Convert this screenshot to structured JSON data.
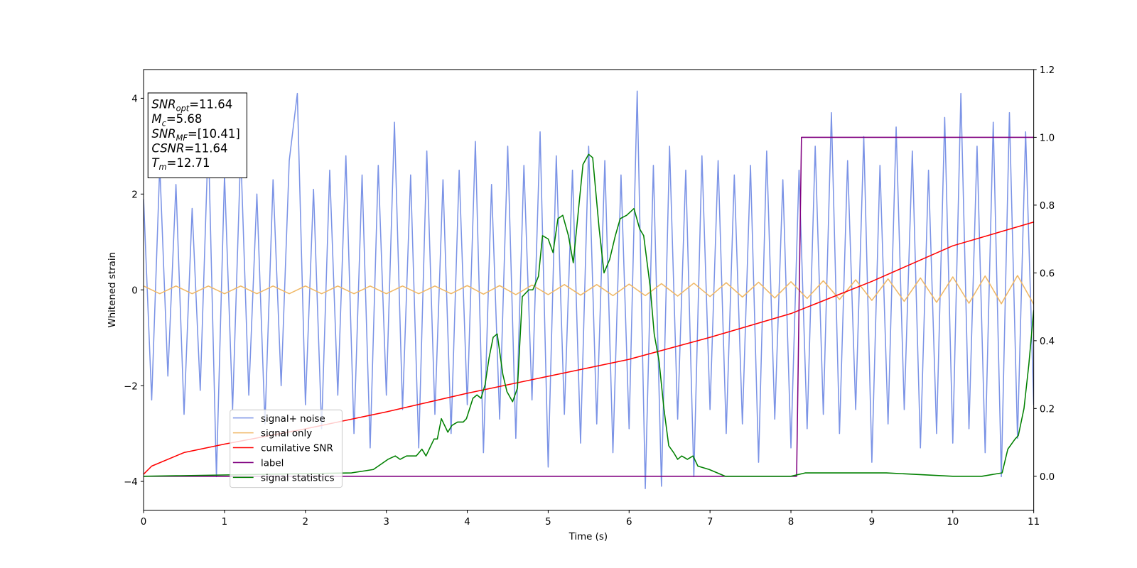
{
  "chart_data": {
    "type": "line",
    "xlabel": "Time (s)",
    "ylabel": "Whitened strain",
    "xlim": [
      0,
      11
    ],
    "xticks": [
      0,
      1,
      2,
      3,
      4,
      5,
      6,
      7,
      8,
      9,
      10,
      11
    ],
    "ylim": [
      -4.6,
      4.6
    ],
    "yticks": [
      {
        "value": -4,
        "label": "−4"
      },
      {
        "value": -2,
        "label": "−2"
      },
      0,
      2,
      4
    ],
    "y2lim": [
      -0.1,
      1.2
    ],
    "y2ticks": [
      {
        "value": 0,
        "label": "0.0"
      },
      {
        "value": 0.2,
        "label": "0.2"
      },
      {
        "value": 0.4,
        "label": "0.4"
      },
      {
        "value": 0.6,
        "label": "0.6"
      },
      {
        "value": 0.8,
        "label": "0.8"
      },
      {
        "value": 1,
        "label": "1.0"
      },
      {
        "value": 1.2,
        "label": "1.2"
      }
    ],
    "legend": "lower left",
    "annotations": [
      {
        "symbol": "SNR",
        "subscript": "opt",
        "text": "=11.64"
      },
      {
        "symbol": "M",
        "subscript": "c",
        "text": "=5.68"
      },
      {
        "symbol": "SNR",
        "subscript": "MF",
        "text": "=[10.41]"
      },
      {
        "symbol": "CSNR",
        "text": "=11.64"
      },
      {
        "symbol": "T",
        "subscript": "m",
        "text": "=12.71"
      }
    ],
    "series": [
      {
        "name": "signal+ noise",
        "color": "#7b93e6",
        "x": [
          0,
          0.1,
          0.2,
          0.3,
          0.4,
          0.5,
          0.6,
          0.7,
          0.8,
          0.9,
          1,
          1.1,
          1.2,
          1.3,
          1.4,
          1.5,
          1.6,
          1.7,
          1.8,
          1.9,
          2,
          2.1,
          2.2,
          2.3,
          2.4,
          2.5,
          2.6,
          2.7,
          2.8,
          2.9,
          3,
          3.1,
          3.2,
          3.3,
          3.4,
          3.5,
          3.6,
          3.7,
          3.8,
          3.9,
          4,
          4.1,
          4.2,
          4.3,
          4.4,
          4.5,
          4.6,
          4.7,
          4.8,
          4.9,
          5,
          5.1,
          5.2,
          5.3,
          5.4,
          5.5,
          5.6,
          5.7,
          5.8,
          5.9,
          6,
          6.1,
          6.2,
          6.3,
          6.4,
          6.5,
          6.6,
          6.7,
          6.8,
          6.9,
          7,
          7.1,
          7.2,
          7.3,
          7.4,
          7.5,
          7.6,
          7.7,
          7.8,
          7.9,
          8,
          8.1,
          8.2,
          8.3,
          8.4,
          8.5,
          8.6,
          8.7,
          8.8,
          8.9,
          9,
          9.1,
          9.2,
          9.3,
          9.4,
          9.5,
          9.6,
          9.7,
          9.8,
          9.9,
          10,
          10.1,
          10.2,
          10.3,
          10.4,
          10.5,
          10.6,
          10.7,
          10.8,
          10.9,
          11
        ],
        "values": [
          1.9,
          -2.3,
          2.6,
          -1.8,
          2.2,
          -2.6,
          1.7,
          -2.1,
          3.2,
          -3.9,
          2.4,
          -2.5,
          2.9,
          -2.2,
          2.0,
          -2.8,
          2.3,
          -2.0,
          2.7,
          4.1,
          -2.4,
          2.1,
          -2.9,
          2.5,
          -2.2,
          2.8,
          -3.0,
          2.4,
          -3.3,
          2.6,
          -2.2,
          3.5,
          -2.5,
          2.4,
          -3.3,
          2.9,
          -2.6,
          2.3,
          -3.0,
          2.5,
          -2.4,
          3.1,
          -3.4,
          2.2,
          -2.7,
          3.0,
          -3.1,
          2.6,
          -2.3,
          3.3,
          -3.7,
          2.8,
          -2.6,
          2.5,
          -3.2,
          3.0,
          -2.8,
          2.7,
          -3.4,
          2.4,
          -2.9,
          4.15,
          -4.15,
          2.6,
          -4.1,
          3.0,
          -2.7,
          2.5,
          -3.9,
          2.8,
          -2.5,
          2.7,
          -3.0,
          2.4,
          -2.8,
          2.6,
          -3.6,
          2.9,
          -2.7,
          2.3,
          -3.3,
          2.5,
          -2.9,
          3.0,
          -2.6,
          3.7,
          -3.0,
          2.7,
          -2.5,
          3.2,
          -3.6,
          2.6,
          -2.8,
          3.4,
          -2.5,
          2.9,
          -3.3,
          2.5,
          -3.0,
          3.6,
          -3.2,
          4.1,
          -2.9,
          3.0,
          -3.4,
          3.5,
          -3.9,
          3.7,
          -3.1,
          3.3,
          -2.4
        ]
      },
      {
        "name": "signal only",
        "color": "#f0b866",
        "x": [
          0,
          0.2,
          0.4,
          0.6,
          0.8,
          1,
          1.2,
          1.4,
          1.6,
          1.8,
          2,
          2.2,
          2.4,
          2.6,
          2.8,
          3,
          3.2,
          3.4,
          3.6,
          3.8,
          4,
          4.2,
          4.4,
          4.6,
          4.8,
          5,
          5.2,
          5.4,
          5.6,
          5.8,
          6,
          6.2,
          6.4,
          6.6,
          6.8,
          7,
          7.2,
          7.4,
          7.6,
          7.8,
          8,
          8.2,
          8.4,
          8.6,
          8.8,
          9,
          9.2,
          9.4,
          9.6,
          9.8,
          10,
          10.2,
          10.4,
          10.6,
          10.8,
          11
        ],
        "values": [
          0.08,
          -0.08,
          0.08,
          -0.08,
          0.08,
          -0.08,
          0.08,
          -0.08,
          0.08,
          -0.08,
          0.08,
          -0.08,
          0.08,
          -0.08,
          0.08,
          -0.08,
          0.08,
          -0.08,
          0.08,
          -0.08,
          0.09,
          -0.09,
          0.09,
          -0.1,
          0.1,
          -0.1,
          0.11,
          -0.11,
          0.11,
          -0.12,
          0.12,
          -0.12,
          0.13,
          -0.13,
          0.14,
          -0.14,
          0.15,
          -0.15,
          0.16,
          -0.17,
          0.17,
          -0.18,
          0.19,
          -0.2,
          0.21,
          -0.22,
          0.23,
          -0.24,
          0.25,
          -0.26,
          0.27,
          -0.28,
          0.29,
          -0.29,
          0.3,
          -0.3
        ]
      },
      {
        "name": "cumilative SNR",
        "color": "#ff0000",
        "axis": "y2",
        "x": [
          0,
          0.1,
          0.5,
          1,
          2,
          3,
          4,
          5,
          6,
          7,
          8,
          9,
          10,
          11
        ],
        "values": [
          0.006,
          0.03,
          0.07,
          0.095,
          0.14,
          0.19,
          0.245,
          0.295,
          0.345,
          0.41,
          0.48,
          0.575,
          0.68,
          0.75
        ]
      },
      {
        "name": "label",
        "color": "#800080",
        "axis": "y2",
        "x": [
          0,
          8.07,
          8.13,
          11
        ],
        "values": [
          0,
          0,
          1,
          1
        ]
      },
      {
        "name": "signal statistics",
        "color": "#008000",
        "axis": "y2",
        "x": [
          0,
          2.57,
          2.84,
          3.02,
          3.11,
          3.17,
          3.25,
          3.37,
          3.44,
          3.49,
          3.59,
          3.63,
          3.68,
          3.76,
          3.81,
          3.88,
          3.95,
          3.99,
          4.07,
          4.12,
          4.17,
          4.22,
          4.27,
          4.32,
          4.37,
          4.44,
          4.49,
          4.56,
          4.62,
          4.68,
          4.76,
          4.81,
          4.88,
          4.93,
          5.0,
          5.06,
          5.12,
          5.18,
          5.25,
          5.31,
          5.38,
          5.43,
          5.5,
          5.55,
          5.63,
          5.69,
          5.76,
          5.83,
          5.89,
          5.97,
          6.06,
          6.13,
          6.18,
          6.26,
          6.31,
          6.37,
          6.43,
          6.49,
          6.55,
          6.6,
          6.65,
          6.72,
          6.79,
          6.85,
          6.99,
          7.19,
          8.0,
          8.18,
          8.28,
          8.55,
          9.18,
          10.0,
          10.36,
          10.61,
          10.68,
          10.77,
          10.81,
          10.88,
          10.94,
          11.0
        ],
        "values": [
          0,
          0.01,
          0.02,
          0.05,
          0.06,
          0.05,
          0.06,
          0.06,
          0.08,
          0.06,
          0.11,
          0.11,
          0.17,
          0.13,
          0.15,
          0.16,
          0.16,
          0.17,
          0.23,
          0.24,
          0.23,
          0.27,
          0.35,
          0.41,
          0.42,
          0.3,
          0.25,
          0.22,
          0.26,
          0.53,
          0.55,
          0.55,
          0.59,
          0.71,
          0.7,
          0.66,
          0.76,
          0.77,
          0.71,
          0.63,
          0.8,
          0.92,
          0.95,
          0.94,
          0.73,
          0.6,
          0.64,
          0.71,
          0.76,
          0.77,
          0.79,
          0.73,
          0.71,
          0.56,
          0.42,
          0.34,
          0.2,
          0.09,
          0.07,
          0.05,
          0.06,
          0.05,
          0.06,
          0.03,
          0.02,
          0,
          0,
          0.01,
          0.01,
          0.01,
          0.01,
          0,
          0,
          0.01,
          0.08,
          0.11,
          0.12,
          0.2,
          0.33,
          0.49
        ]
      }
    ]
  }
}
